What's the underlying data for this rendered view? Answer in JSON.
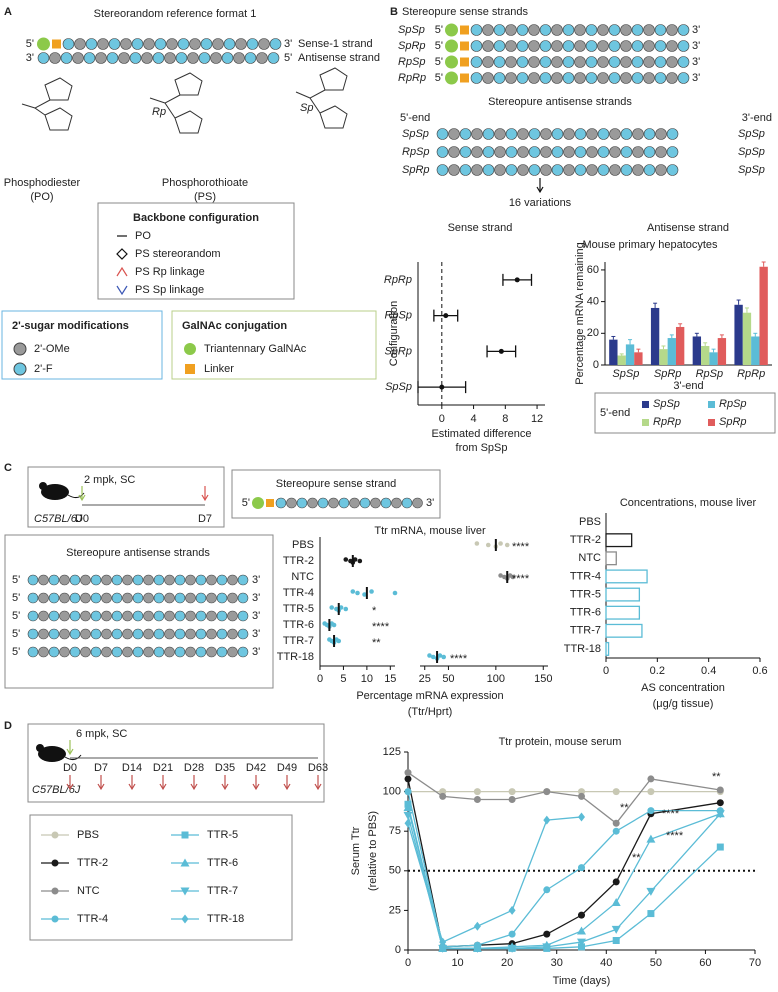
{
  "panel_a": {
    "label": "A",
    "title": "Stereorandom reference format 1",
    "five": "5'",
    "three": "3'",
    "sense": "Sense-1 strand",
    "antisense": "Antisense strand",
    "po_name": "Phosphodiester",
    "po_abbr": "(PO)",
    "ps_name": "Phosphorothioate",
    "ps_abbr": "(PS)",
    "rp": "Rp",
    "sp": "Sp",
    "backbone": {
      "title": "Backbone configuration",
      "items": [
        "PO",
        "PS stereorandom",
        "PS Rp linkage",
        "PS Sp linkage"
      ]
    },
    "sugar": {
      "title": "2'-sugar modifications",
      "items": [
        "2'-OMe",
        "2'-F"
      ]
    },
    "galnac": {
      "title": "GalNAc conjugation",
      "items": [
        "Triantennary GalNAc",
        "Linker"
      ]
    }
  },
  "panel_b": {
    "label": "B",
    "sense_title": "Stereopure sense strands",
    "sense_rows": [
      "SpSp",
      "SpRp",
      "RpSp",
      "RpRp"
    ],
    "antisense_title": "Stereopure antisense strands",
    "five_end": "5'-end",
    "three_end": "3'-end",
    "antisense_rows": [
      [
        "SpSp",
        "SpSp"
      ],
      [
        "RpSp",
        "SpSp"
      ],
      [
        "SpRp",
        "SpSp"
      ]
    ],
    "variations": "16 variations",
    "sense_heading": "Sense strand",
    "antisense_heading": "Antisense strand"
  },
  "panel_c": {
    "label": "C",
    "dose": "2 mpk, SC",
    "strain": "C57BL/6J",
    "days": [
      "D0",
      "D7"
    ],
    "sense_box": "Stereopure sense strand",
    "antisense_box": "Stereopure antisense strands"
  },
  "panel_d": {
    "label": "D",
    "dose": "6 mpk, SC",
    "strain": "C57BL/6J",
    "days": [
      "D0",
      "D7",
      "D14",
      "D21",
      "D28",
      "D35",
      "D42",
      "D49",
      "D63"
    ]
  },
  "chart_data": [
    {
      "type": "forest",
      "ylabel": "Configuration",
      "xlabel": [
        "Estimated difference",
        "from SpSp"
      ],
      "categories": [
        "RpRp",
        "RpSp",
        "SpRp",
        "SpSp"
      ],
      "values": [
        9.5,
        0.5,
        7.5,
        0
      ],
      "errors": [
        1.8,
        1.5,
        1.8,
        3
      ],
      "xlim": [
        -3,
        13
      ],
      "xticks": [
        0,
        4,
        8,
        12
      ],
      "refline": 0
    },
    {
      "type": "grouped_bar",
      "title": "Mouse primary hepatocytes",
      "ylabel": "Percentage mRNA remaining",
      "xlabel": "3'-end",
      "legend_title": "5'-end",
      "categories": [
        "SpSp",
        "SpRp",
        "RpSp",
        "RpRp"
      ],
      "series": [
        {
          "name": "SpSp",
          "color": "#2b3a8c",
          "values": [
            16,
            36,
            18,
            38
          ],
          "errors": [
            2,
            3,
            2,
            3
          ]
        },
        {
          "name": "RpRp",
          "color": "#b5d98a",
          "values": [
            6,
            10,
            12,
            33
          ],
          "errors": [
            1,
            2,
            2,
            3
          ]
        },
        {
          "name": "RpSp",
          "color": "#5bbcd6",
          "values": [
            13,
            17,
            8,
            18
          ],
          "errors": [
            3,
            2,
            2,
            2
          ]
        },
        {
          "name": "SpRp",
          "color": "#e05c5c",
          "values": [
            8,
            24,
            17,
            62
          ],
          "errors": [
            2,
            2,
            2,
            3
          ]
        }
      ],
      "ylim": [
        0,
        65
      ],
      "yticks": [
        0,
        20,
        40,
        60
      ]
    },
    {
      "type": "dot",
      "title": "Ttr mRNA, mouse liver",
      "xlabel": [
        "Percentage mRNA expression",
        "(Ttr/Hprt)"
      ],
      "categories": [
        "PBS",
        "TTR-2",
        "NTC",
        "TTR-4",
        "TTR-5",
        "TTR-6",
        "TTR-7",
        "TTR-18"
      ],
      "colors": [
        "#c8c8b4",
        "#1a1a1a",
        "#8c8c8c",
        "#5bbcd6",
        "#5bbcd6",
        "#5bbcd6",
        "#5bbcd6",
        "#5bbcd6"
      ],
      "values": [
        100,
        7,
        112,
        10,
        4,
        2,
        3,
        38
      ],
      "points": [
        [
          80,
          92,
          100,
          105,
          112
        ],
        [
          5.5,
          6.5,
          7,
          7.5,
          8.5
        ],
        [
          105,
          109,
          112,
          115,
          118
        ],
        [
          7,
          8,
          9.5,
          11,
          16
        ],
        [
          2.5,
          3.5,
          4,
          4.5,
          5.5
        ],
        [
          1,
          1.5,
          2,
          2.5,
          3
        ],
        [
          2,
          2.5,
          3,
          3.5,
          4
        ],
        [
          30,
          34,
          38,
          41,
          45
        ]
      ],
      "annotations": [
        "****",
        null,
        "****",
        null,
        "*",
        "****",
        "**",
        "****"
      ],
      "xlim_segments": [
        [
          0,
          16
        ],
        [
          20,
          155
        ]
      ],
      "xticks": [
        0,
        5,
        10,
        15,
        25,
        50,
        100,
        150
      ]
    },
    {
      "type": "hbar",
      "title": "Concentrations, mouse liver",
      "xlabel": [
        "AS concentration",
        "(μg/g tissue)"
      ],
      "categories": [
        "PBS",
        "TTR-2",
        "NTC",
        "TTR-4",
        "TTR-5",
        "TTR-6",
        "TTR-7",
        "TTR-18"
      ],
      "colors": [
        "#c8c8b4",
        "#1a1a1a",
        "#8c8c8c",
        "#5bbcd6",
        "#5bbcd6",
        "#5bbcd6",
        "#5bbcd6",
        "#5bbcd6"
      ],
      "values": [
        0,
        0.1,
        0.04,
        0.16,
        0.13,
        0.13,
        0.14,
        0.01
      ],
      "xlim": [
        0,
        0.6
      ],
      "xticks": [
        0,
        0.2,
        0.4,
        0.6
      ]
    },
    {
      "type": "line",
      "title": "Ttr protein, mouse serum",
      "ylabel": [
        "Serum Ttr",
        "(relative to PBS)"
      ],
      "xlabel": "Time (days)",
      "x": [
        0,
        7,
        14,
        21,
        28,
        35,
        42,
        49,
        63
      ],
      "series": [
        {
          "name": "PBS",
          "color": "#c8c8b4",
          "marker": "circle",
          "values": [
            100,
            100,
            100,
            100,
            100,
            100,
            100,
            100,
            100
          ]
        },
        {
          "name": "TTR-2",
          "color": "#1a1a1a",
          "marker": "circle",
          "values": [
            108,
            2,
            3,
            4,
            10,
            22,
            43,
            86,
            93
          ]
        },
        {
          "name": "NTC",
          "color": "#8c8c8c",
          "marker": "circle",
          "values": [
            112,
            97,
            95,
            95,
            100,
            97,
            80,
            108,
            101
          ]
        },
        {
          "name": "TTR-4",
          "color": "#5bbcd6",
          "marker": "circle",
          "values": [
            100,
            2,
            3,
            10,
            38,
            52,
            75,
            88,
            88
          ]
        },
        {
          "name": "TTR-5",
          "color": "#5bbcd6",
          "marker": "square",
          "values": [
            92,
            1,
            1,
            1,
            1,
            2,
            6,
            23,
            65
          ]
        },
        {
          "name": "TTR-6",
          "color": "#5bbcd6",
          "marker": "triangle",
          "values": [
            90,
            1,
            1,
            2,
            3,
            12,
            30,
            70,
            86
          ]
        },
        {
          "name": "TTR-7",
          "color": "#5bbcd6",
          "marker": "triangle-down",
          "values": [
            85,
            1,
            1,
            1,
            2,
            5,
            13,
            37,
            86
          ]
        },
        {
          "name": "TTR-18",
          "color": "#5bbcd6",
          "marker": "diamond",
          "values": [
            80,
            5,
            15,
            25,
            82,
            84,
            null,
            null,
            null
          ]
        }
      ],
      "xlim": [
        0,
        70
      ],
      "xticks": [
        0,
        10,
        20,
        30,
        40,
        50,
        60,
        70
      ],
      "ylim": [
        0,
        125
      ],
      "yticks": [
        0,
        25,
        50,
        75,
        100,
        125
      ],
      "hline": 50,
      "annotations": [
        "**",
        "****",
        "****",
        "**",
        "**"
      ]
    }
  ]
}
